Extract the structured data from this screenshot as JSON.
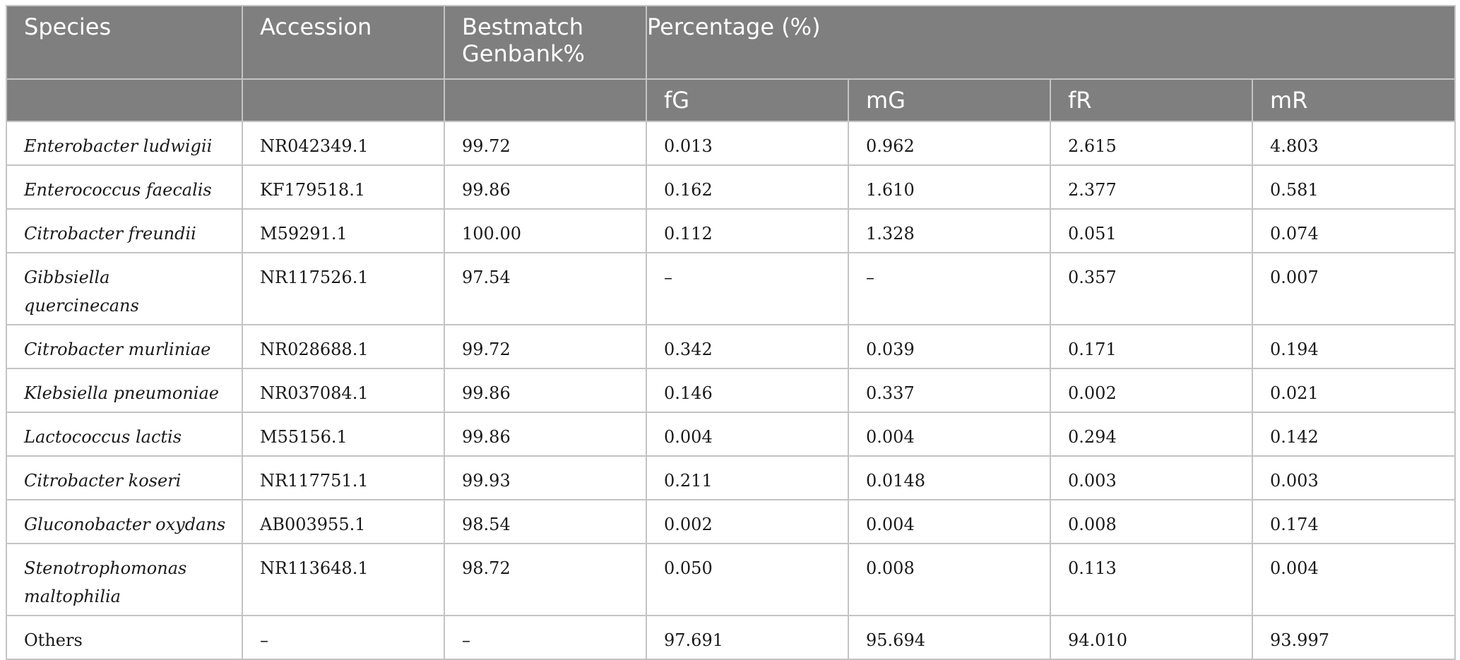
{
  "table": {
    "headers": {
      "species": "Species",
      "accession": "Accession",
      "bestmatch": "Bestmatch Genbank%",
      "percentage": "Percentage (%)",
      "sub": [
        "fG",
        "mG",
        "fR",
        "mR"
      ]
    },
    "rows": [
      {
        "species": "Enterobacter ludwigii",
        "accession": "NR042349.1",
        "bestmatch": "99.72",
        "fG": "0.013",
        "mG": "0.962",
        "fR": "2.615",
        "mR": "4.803"
      },
      {
        "species": "Enterococcus faecalis",
        "accession": "KF179518.1",
        "bestmatch": "99.86",
        "fG": "0.162",
        "mG": "1.610",
        "fR": "2.377",
        "mR": "0.581"
      },
      {
        "species": "Citrobacter freundii",
        "accession": "M59291.1",
        "bestmatch": "100.00",
        "fG": "0.112",
        "mG": "1.328",
        "fR": "0.051",
        "mR": "0.074"
      },
      {
        "species": "Gibbsiella quercinecans",
        "accession": "NR117526.1",
        "bestmatch": "97.54",
        "fG": "–",
        "mG": "–",
        "fR": "0.357",
        "mR": "0.007"
      },
      {
        "species": "Citrobacter murliniae",
        "accession": "NR028688.1",
        "bestmatch": "99.72",
        "fG": "0.342",
        "mG": "0.039",
        "fR": "0.171",
        "mR": "0.194"
      },
      {
        "species": "Klebsiella pneumoniae",
        "accession": "NR037084.1",
        "bestmatch": "99.86",
        "fG": "0.146",
        "mG": "0.337",
        "fR": "0.002",
        "mR": "0.021"
      },
      {
        "species": "Lactococcus lactis",
        "accession": "M55156.1",
        "bestmatch": "99.86",
        "fG": "0.004",
        "mG": "0.004",
        "fR": "0.294",
        "mR": "0.142"
      },
      {
        "species": "Citrobacter koseri",
        "accession": "NR117751.1",
        "bestmatch": "99.93",
        "fG": "0.211",
        "mG": "0.0148",
        "fR": "0.003",
        "mR": "0.003"
      },
      {
        "species": "Gluconobacter oxydans",
        "accession": "AB003955.1",
        "bestmatch": "98.54",
        "fG": "0.002",
        "mG": "0.004",
        "fR": "0.008",
        "mR": "0.174"
      },
      {
        "species": "Stenotrophomonas maltophilia",
        "accession": "NR113648.1",
        "bestmatch": "98.72",
        "fG": "0.050",
        "mG": "0.008",
        "fR": "0.113",
        "mR": "0.004"
      },
      {
        "species": "Others",
        "accession": "–",
        "bestmatch": "–",
        "fG": "97.691",
        "mG": "95.694",
        "fR": "94.010",
        "mR": "93.997"
      }
    ]
  }
}
